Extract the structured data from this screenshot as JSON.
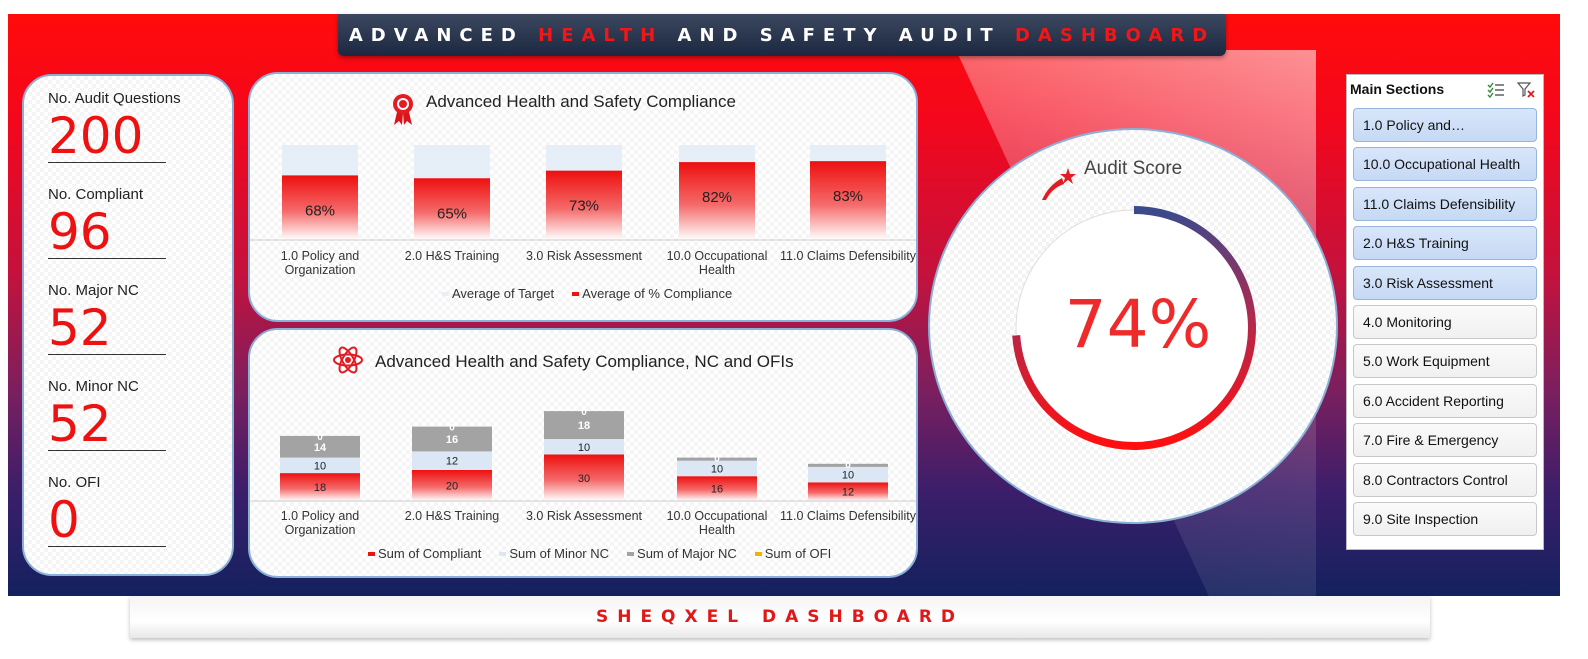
{
  "title": {
    "part1": "ADVANCED ",
    "part2": "HEALTH",
    "part3": " AND SAFETY AUDIT ",
    "part4": "DASHBOARD"
  },
  "kpis": [
    {
      "label": "No. Audit Questions",
      "value": "200"
    },
    {
      "label": "No. Compliant",
      "value": "96"
    },
    {
      "label": "No. Major NC",
      "value": "52"
    },
    {
      "label": "No. Minor NC",
      "value": "52"
    },
    {
      "label": "No. OFI",
      "value": "0"
    }
  ],
  "score": {
    "title": "Audit Score",
    "value": "74%",
    "fraction": 0.74
  },
  "slicer": {
    "header": "Main Sections",
    "items": [
      {
        "label": "1.0 Policy and…",
        "selected": true
      },
      {
        "label": "10.0 Occupational Health",
        "selected": true
      },
      {
        "label": "11.0 Claims Defensibility",
        "selected": true
      },
      {
        "label": "2.0 H&S Training",
        "selected": true
      },
      {
        "label": "3.0 Risk Assessment",
        "selected": true
      },
      {
        "label": "4.0 Monitoring",
        "selected": false
      },
      {
        "label": "5.0 Work Equipment",
        "selected": false
      },
      {
        "label": "6.0 Accident Reporting",
        "selected": false
      },
      {
        "label": "7.0 Fire & Emergency",
        "selected": false
      },
      {
        "label": "8.0 Contractors Control",
        "selected": false
      },
      {
        "label": "9.0 Site Inspection",
        "selected": false
      }
    ]
  },
  "footer": "SHEQXEL DASHBOARD",
  "colors": {
    "accent": "#ee1111",
    "navy": "#13215e",
    "target": "#e6eef8",
    "major": "#a3a3a3",
    "minor": "#dbe7f5",
    "ofi": "#f0b400"
  },
  "chart_data": [
    {
      "type": "bar",
      "title": "Advanced Health and Safety Compliance",
      "categories": [
        [
          "1.0 Policy and",
          "Organization"
        ],
        [
          "2.0 H&S Training"
        ],
        [
          "3.0 Risk Assessment"
        ],
        [
          "10.0 Occupational",
          "Health"
        ],
        [
          "11.0 Claims Defensibility"
        ]
      ],
      "series": [
        {
          "name": "Average of Target",
          "values": [
            100,
            100,
            100,
            100,
            100
          ]
        },
        {
          "name": "Average of % Compliance",
          "values": [
            68,
            65,
            73,
            82,
            83
          ]
        }
      ],
      "data_labels": [
        "68%",
        "65%",
        "73%",
        "82%",
        "83%"
      ],
      "ylim": [
        0,
        100
      ],
      "legend": "bottom"
    },
    {
      "type": "bar",
      "stacked": true,
      "title": "Advanced Health and Safety Compliance, NC and OFIs",
      "categories": [
        [
          "1.0 Policy and",
          "Organization"
        ],
        [
          "2.0 H&S Training"
        ],
        [
          "3.0 Risk Assessment"
        ],
        [
          "10.0 Occupational",
          "Health"
        ],
        [
          "11.0 Claims Defensibility"
        ]
      ],
      "series": [
        {
          "name": "Sum of Compliant",
          "values": [
            18,
            20,
            30,
            16,
            12
          ]
        },
        {
          "name": "Sum of Minor NC",
          "values": [
            10,
            12,
            10,
            10,
            10
          ]
        },
        {
          "name": "Sum of Major NC",
          "values": [
            14,
            16,
            18,
            2,
            2
          ]
        },
        {
          "name": "Sum of OFI",
          "values": [
            0,
            0,
            0,
            0,
            0
          ]
        }
      ],
      "legend": "bottom"
    }
  ]
}
